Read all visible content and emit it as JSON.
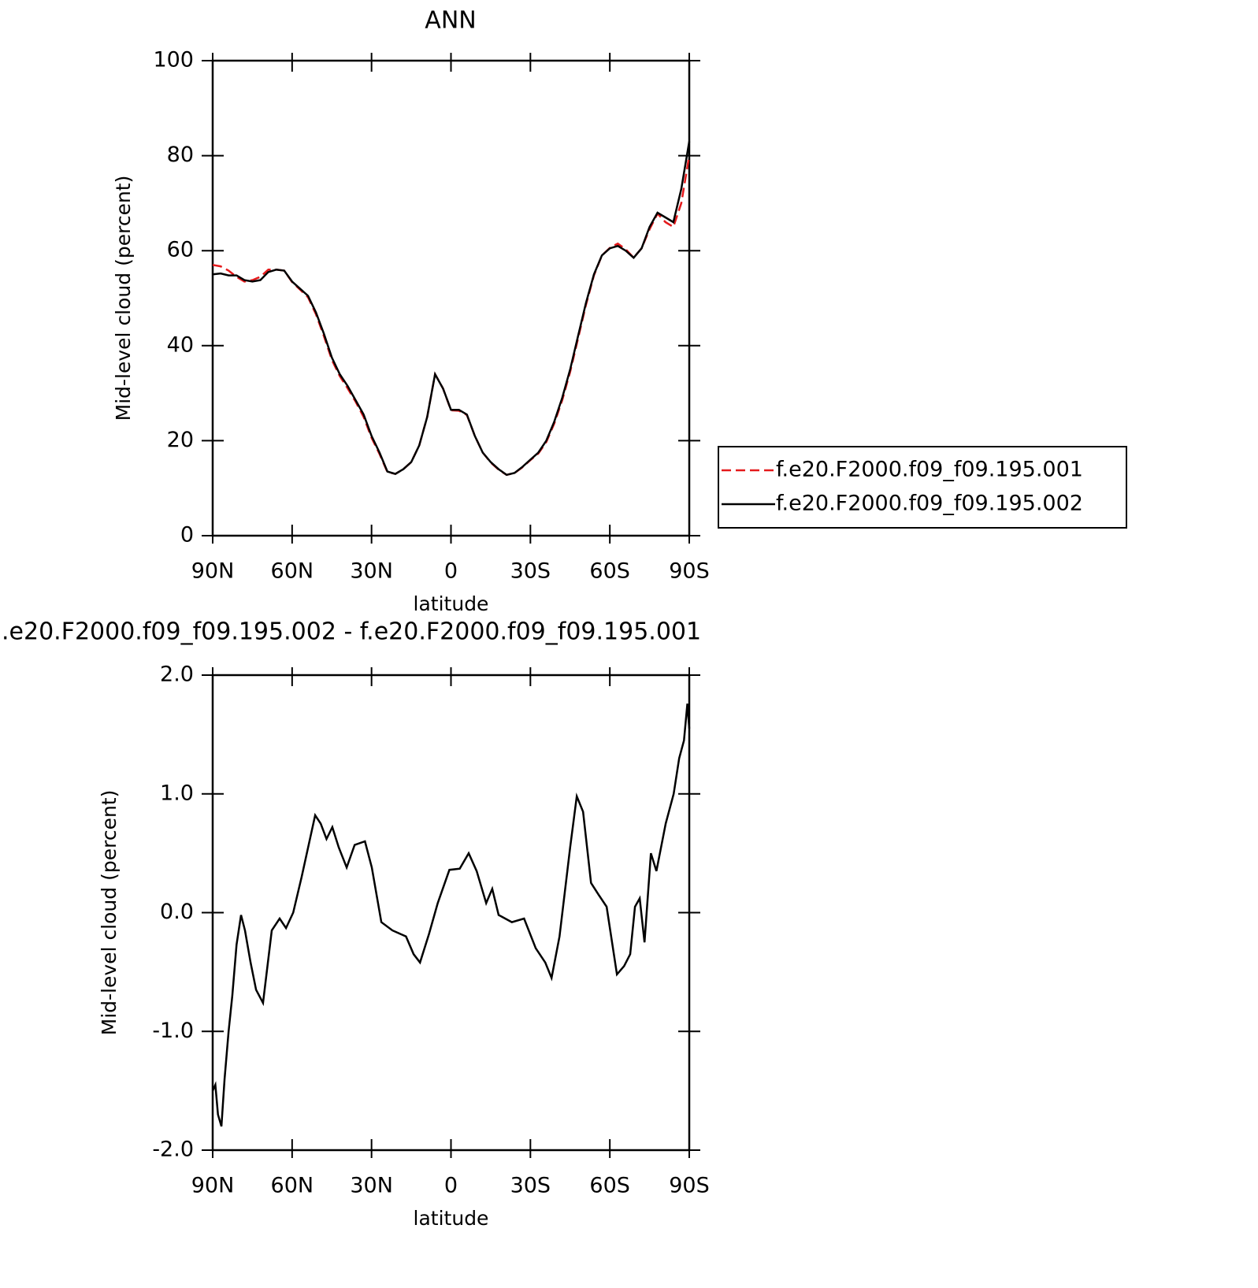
{
  "chart_data": [
    {
      "type": "line",
      "title": "ANN",
      "xlabel": "latitude",
      "ylabel": "Mid-level cloud (percent)",
      "x": [
        90,
        87,
        84,
        81,
        78,
        75,
        72,
        69,
        66,
        63,
        60,
        57,
        54,
        51,
        48,
        45,
        42,
        39,
        36,
        33,
        30,
        27,
        24,
        21,
        18,
        15,
        12,
        9,
        6,
        3,
        0,
        -3,
        -6,
        -9,
        -12,
        -15,
        -18,
        -21,
        -24,
        -27,
        -30,
        -33,
        -36,
        -39,
        -42,
        -45,
        -48,
        -51,
        -54,
        -57,
        -60,
        -63,
        -66,
        -69,
        -72,
        -75,
        -78,
        -81,
        -84,
        -87,
        -90
      ],
      "xlim": [
        90,
        -90
      ],
      "xticks": [
        {
          "value": 90,
          "label": "90N"
        },
        {
          "value": 60,
          "label": "60N"
        },
        {
          "value": 30,
          "label": "30N"
        },
        0,
        {
          "value": -30,
          "label": "30S"
        },
        {
          "value": -60,
          "label": "60S"
        },
        {
          "value": -90,
          "label": "90S"
        }
      ],
      "ylim": [
        0,
        100
      ],
      "yticks": [
        0,
        20,
        40,
        60,
        80,
        100
      ],
      "legend": "right",
      "series": [
        {
          "name": "f.e20.F2000.f09_f09.195.001",
          "color": "#e41a1c",
          "dash": true,
          "values": [
            57,
            56.7,
            55.8,
            54.5,
            53.5,
            53.8,
            54.5,
            56,
            56,
            55.8,
            53.4,
            51.8,
            50.2,
            46.6,
            42,
            37,
            33.6,
            31,
            28.2,
            25,
            20.6,
            17.2,
            13.4,
            13,
            14,
            15.5,
            19,
            25,
            34,
            31,
            26.4,
            26.3,
            25.4,
            21,
            17.5,
            15.4,
            13.9,
            12.8,
            13.2,
            14.4,
            15.9,
            17.3,
            19.7,
            23.6,
            28.5,
            34.5,
            41.5,
            48.6,
            54.8,
            59,
            60.6,
            61.5,
            60.3,
            58.5,
            60.5,
            64.5,
            67.8,
            66,
            65,
            70,
            80
          ]
        },
        {
          "name": "f.e20.F2000.f09_f09.195.002",
          "color": "#000000",
          "dash": false,
          "values": [
            55,
            55.2,
            54.8,
            54.8,
            53.8,
            53.5,
            53.8,
            55.5,
            56,
            55.8,
            53.5,
            52,
            50.5,
            47,
            42.5,
            37.5,
            34,
            31.5,
            28.5,
            25.5,
            21,
            17.5,
            13.5,
            13,
            14,
            15.5,
            19,
            25,
            34,
            31,
            26.5,
            26.5,
            25.5,
            21,
            17.5,
            15.5,
            14,
            12.8,
            13.2,
            14.5,
            16,
            17.5,
            20,
            24,
            29,
            35,
            42,
            49,
            55,
            59,
            60.5,
            61,
            60,
            58.5,
            60.5,
            65,
            68,
            67,
            66,
            73,
            83
          ]
        }
      ]
    },
    {
      "type": "line",
      "title": ".e20.F2000.f09_f09.195.002 - f.e20.F2000.f09_f09.195.001",
      "xlabel": "latitude",
      "ylabel": "Mid-level cloud (percent)",
      "x": [
        90,
        89,
        88,
        86.7,
        85.5,
        84,
        82.6,
        81,
        79.3,
        77.8,
        75.7,
        73.6,
        71,
        67.7,
        64.7,
        62.3,
        59.6,
        56.4,
        51.3,
        49.2,
        47,
        44.8,
        42.4,
        39.4,
        36.4,
        32.5,
        29.9,
        26.3,
        22.1,
        17,
        14.1,
        11.7,
        8.3,
        5,
        0.6,
        -3.3,
        -6.7,
        -9.7,
        -13.3,
        -15.6,
        -18,
        -23,
        -27.6,
        -32,
        -35.6,
        -38,
        -41,
        -45,
        -47.5,
        -49.9,
        -52.9,
        -55.8,
        -58.8,
        -62.7,
        -65.4,
        -67.7,
        -69.5,
        -71.3,
        -73.1,
        -75.5,
        -77.6,
        -81.1,
        -84.1,
        -86.2,
        -88,
        -89.3,
        -90
      ],
      "xlim": [
        90,
        -90
      ],
      "xticks": [
        {
          "value": 90,
          "label": "90N"
        },
        {
          "value": 60,
          "label": "60N"
        },
        {
          "value": 30,
          "label": "30N"
        },
        0,
        {
          "value": -30,
          "label": "30S"
        },
        {
          "value": -60,
          "label": "60S"
        },
        {
          "value": -90,
          "label": "90S"
        }
      ],
      "ylim": [
        -2,
        2
      ],
      "yticks": [
        {
          "value": -2,
          "label": "-2.0"
        },
        {
          "value": -1,
          "label": "-1.0"
        },
        {
          "value": 0,
          "label": "0.0"
        },
        {
          "value": 1,
          "label": "1.0"
        },
        {
          "value": 2,
          "label": "2.0"
        }
      ],
      "series": [
        {
          "color": "#000000",
          "dash": false,
          "values": [
            -1.5,
            -1.45,
            -1.7,
            -1.8,
            -1.4,
            -1.0,
            -0.7,
            -0.27,
            -0.02,
            -0.15,
            -0.42,
            -0.65,
            -0.76,
            -0.15,
            -0.05,
            -0.13,
            0,
            0.3,
            0.82,
            0.75,
            0.62,
            0.72,
            0.55,
            0.38,
            0.57,
            0.6,
            0.38,
            -0.08,
            -0.15,
            -0.2,
            -0.35,
            -0.42,
            -0.18,
            0.08,
            0.36,
            0.37,
            0.5,
            0.35,
            0.08,
            0.2,
            -0.02,
            -0.08,
            -0.05,
            -0.3,
            -0.42,
            -0.55,
            -0.2,
            0.55,
            0.98,
            0.85,
            0.25,
            0.15,
            0.05,
            -0.52,
            -0.45,
            -0.35,
            0.05,
            0.12,
            -0.25,
            0.5,
            0.35,
            0.75,
            1.0,
            1.3,
            1.45,
            1.76,
            1.55
          ]
        }
      ]
    }
  ]
}
